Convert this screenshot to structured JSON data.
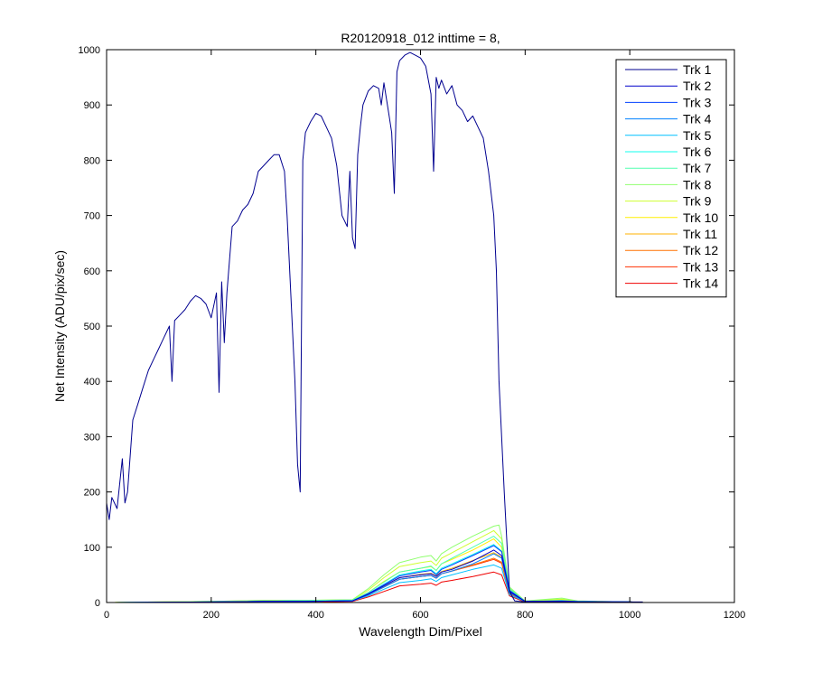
{
  "chart_data": {
    "type": "line",
    "title": "R20120918_012 inttime = 8,",
    "xlabel": "Wavelength Dim/Pixel",
    "ylabel": "Net Intensity (ADU/pix/sec)",
    "xlim": [
      0,
      1200
    ],
    "ylim": [
      0,
      1000
    ],
    "xticks": [
      0,
      200,
      400,
      600,
      800,
      1000,
      1200
    ],
    "yticks": [
      0,
      100,
      200,
      300,
      400,
      500,
      600,
      700,
      800,
      900,
      1000
    ],
    "xtick_labels": [
      "0",
      "200",
      "400",
      "600",
      "800",
      "1000",
      "1200"
    ],
    "ytick_labels": [
      "0",
      "100",
      "200",
      "300",
      "400",
      "500",
      "600",
      "700",
      "800",
      "900",
      "1000"
    ],
    "grid": false,
    "legend_position": "top-right",
    "series": [
      {
        "name": "Trk 1",
        "color": "#00008f",
        "x": [
          0,
          5,
          10,
          20,
          30,
          35,
          40,
          50,
          60,
          70,
          80,
          90,
          100,
          110,
          120,
          125,
          130,
          140,
          150,
          160,
          170,
          180,
          190,
          200,
          210,
          215,
          220,
          225,
          230,
          235,
          240,
          250,
          260,
          270,
          280,
          290,
          300,
          310,
          320,
          330,
          340,
          345,
          350,
          355,
          360,
          365,
          370,
          375,
          380,
          385,
          390,
          400,
          410,
          420,
          430,
          440,
          450,
          460,
          465,
          470,
          475,
          480,
          485,
          490,
          500,
          510,
          520,
          525,
          530,
          540,
          545,
          550,
          555,
          560,
          570,
          580,
          590,
          600,
          610,
          620,
          625,
          630,
          635,
          640,
          650,
          660,
          670,
          680,
          690,
          700,
          710,
          720,
          730,
          740,
          745,
          750,
          760,
          770,
          780,
          790,
          800,
          850,
          900,
          1000,
          1025
        ],
        "y": [
          180,
          150,
          190,
          170,
          260,
          180,
          200,
          330,
          360,
          390,
          420,
          440,
          460,
          480,
          500,
          400,
          510,
          520,
          530,
          545,
          555,
          550,
          540,
          515,
          560,
          380,
          580,
          470,
          560,
          620,
          680,
          690,
          710,
          720,
          740,
          780,
          790,
          800,
          810,
          810,
          780,
          700,
          600,
          500,
          400,
          250,
          200,
          800,
          850,
          860,
          870,
          885,
          880,
          860,
          840,
          790,
          700,
          680,
          780,
          660,
          640,
          810,
          860,
          900,
          925,
          935,
          930,
          900,
          940,
          880,
          850,
          740,
          960,
          980,
          990,
          995,
          990,
          985,
          970,
          920,
          780,
          950,
          930,
          945,
          920,
          935,
          900,
          890,
          870,
          880,
          860,
          840,
          780,
          700,
          600,
          400,
          200,
          20,
          3,
          2,
          1,
          1,
          1,
          1,
          1
        ]
      },
      {
        "name": "Trk 2",
        "color": "#0000cc",
        "x": [
          0,
          200,
          300,
          350,
          380,
          470,
          500,
          530,
          560,
          600,
          620,
          630,
          640,
          660,
          700,
          740,
          755,
          770,
          800,
          870,
          900,
          1000,
          1025
        ],
        "y": [
          0,
          1,
          2,
          2,
          2,
          3,
          15,
          30,
          45,
          50,
          52,
          47,
          55,
          60,
          75,
          95,
          85,
          20,
          2,
          2,
          1,
          1,
          0
        ]
      },
      {
        "name": "Trk 3",
        "color": "#0040ff",
        "x": [
          0,
          200,
          300,
          350,
          380,
          470,
          500,
          530,
          560,
          600,
          620,
          630,
          640,
          660,
          700,
          740,
          755,
          770,
          800,
          870,
          900,
          1000,
          1025
        ],
        "y": [
          0,
          1,
          2,
          2,
          2,
          3,
          16,
          32,
          48,
          55,
          58,
          50,
          60,
          68,
          85,
          103,
          92,
          22,
          2,
          3,
          2,
          1,
          0
        ]
      },
      {
        "name": "Trk 4",
        "color": "#0080ff",
        "x": [
          0,
          200,
          300,
          350,
          380,
          470,
          500,
          530,
          560,
          600,
          620,
          630,
          640,
          660,
          700,
          740,
          755,
          770,
          800,
          870,
          900,
          1000,
          1025
        ],
        "y": [
          0,
          1,
          2,
          2,
          2,
          3,
          14,
          28,
          42,
          47,
          49,
          44,
          52,
          57,
          70,
          88,
          80,
          18,
          2,
          2,
          1,
          1,
          0
        ]
      },
      {
        "name": "Trk 5",
        "color": "#00c0ff",
        "x": [
          0,
          200,
          300,
          350,
          380,
          470,
          500,
          530,
          560,
          600,
          620,
          630,
          640,
          660,
          700,
          740,
          755,
          770,
          800,
          870,
          900,
          1000,
          1025
        ],
        "y": [
          0,
          1,
          2,
          2,
          2,
          3,
          12,
          24,
          36,
          40,
          43,
          38,
          45,
          50,
          60,
          68,
          62,
          14,
          2,
          2,
          1,
          1,
          0
        ]
      },
      {
        "name": "Trk 6",
        "color": "#10ffef",
        "x": [
          0,
          200,
          300,
          350,
          380,
          470,
          500,
          530,
          560,
          600,
          620,
          630,
          640,
          660,
          700,
          740,
          755,
          770,
          800,
          870,
          900,
          1000,
          1025
        ],
        "y": [
          0,
          1,
          2,
          3,
          3,
          4,
          16,
          33,
          50,
          57,
          60,
          52,
          62,
          70,
          87,
          105,
          93,
          22,
          2,
          3,
          2,
          1,
          0
        ]
      },
      {
        "name": "Trk 7",
        "color": "#50ffaf",
        "x": [
          0,
          200,
          300,
          350,
          380,
          470,
          500,
          530,
          560,
          600,
          620,
          630,
          640,
          660,
          700,
          740,
          755,
          770,
          800,
          870,
          900,
          1000,
          1025
        ],
        "y": [
          0,
          1,
          2,
          3,
          3,
          4,
          18,
          37,
          55,
          62,
          66,
          58,
          70,
          80,
          100,
          120,
          107,
          25,
          2,
          4,
          2,
          1,
          0
        ]
      },
      {
        "name": "Trk 8",
        "color": "#90ff6f",
        "x": [
          0,
          200,
          300,
          350,
          380,
          470,
          500,
          530,
          560,
          600,
          620,
          630,
          640,
          660,
          700,
          740,
          750,
          755,
          770,
          800,
          870,
          900,
          1000,
          1025
        ],
        "y": [
          0,
          2,
          4,
          4,
          4,
          5,
          25,
          50,
          72,
          82,
          85,
          75,
          88,
          100,
          120,
          138,
          140,
          120,
          28,
          3,
          8,
          3,
          1,
          0
        ]
      },
      {
        "name": "Trk 9",
        "color": "#cfff30",
        "x": [
          0,
          200,
          300,
          350,
          380,
          470,
          500,
          530,
          560,
          600,
          620,
          630,
          640,
          660,
          700,
          740,
          755,
          770,
          800,
          870,
          900,
          1000,
          1025
        ],
        "y": [
          0,
          2,
          4,
          4,
          4,
          5,
          22,
          45,
          65,
          72,
          75,
          67,
          80,
          90,
          110,
          130,
          115,
          26,
          3,
          6,
          3,
          1,
          0
        ]
      },
      {
        "name": "Trk 10",
        "color": "#ffef00",
        "x": [
          0,
          200,
          300,
          350,
          380,
          470,
          500,
          530,
          560,
          600,
          620,
          630,
          640,
          660,
          700,
          740,
          755,
          770,
          800,
          870,
          900,
          1000,
          1025
        ],
        "y": [
          0,
          2,
          3,
          3,
          3,
          4,
          18,
          38,
          55,
          62,
          65,
          58,
          70,
          78,
          95,
          115,
          100,
          23,
          2,
          5,
          2,
          1,
          0
        ]
      },
      {
        "name": "Trk 11",
        "color": "#ffb000",
        "x": [
          0,
          200,
          300,
          350,
          380,
          470,
          500,
          530,
          560,
          600,
          620,
          630,
          640,
          660,
          700,
          740,
          755,
          770,
          800,
          870,
          900,
          1000,
          1025
        ],
        "y": [
          0,
          1,
          2,
          2,
          2,
          3,
          15,
          30,
          45,
          51,
          53,
          48,
          56,
          62,
          76,
          90,
          82,
          19,
          2,
          4,
          2,
          1,
          0
        ]
      },
      {
        "name": "Trk 12",
        "color": "#ff7000",
        "x": [
          0,
          200,
          300,
          350,
          380,
          470,
          500,
          530,
          560,
          600,
          620,
          630,
          640,
          660,
          700,
          740,
          755,
          770,
          800,
          870,
          900,
          1000,
          1025
        ],
        "y": [
          0,
          1,
          2,
          2,
          2,
          3,
          14,
          28,
          42,
          47,
          49,
          44,
          52,
          57,
          68,
          80,
          73,
          17,
          2,
          4,
          2,
          1,
          0
        ]
      },
      {
        "name": "Trk 13",
        "color": "#ff3000",
        "x": [
          0,
          200,
          300,
          350,
          380,
          470,
          500,
          530,
          560,
          600,
          620,
          630,
          640,
          660,
          700,
          740,
          755,
          770,
          800,
          870,
          900,
          1000,
          1025
        ],
        "y": [
          0,
          1,
          2,
          2,
          2,
          3,
          14,
          28,
          42,
          47,
          49,
          44,
          52,
          57,
          67,
          78,
          71,
          16,
          2,
          3,
          2,
          1,
          0
        ]
      },
      {
        "name": "Trk 14",
        "color": "#ef0000",
        "x": [
          0,
          200,
          300,
          350,
          380,
          470,
          500,
          530,
          560,
          600,
          620,
          630,
          640,
          660,
          700,
          740,
          755,
          770,
          800,
          870,
          900,
          1000,
          1025
        ],
        "y": [
          0,
          1,
          1,
          1,
          1,
          2,
          10,
          20,
          30,
          33,
          35,
          31,
          37,
          40,
          47,
          55,
          50,
          12,
          1,
          2,
          1,
          1,
          0
        ]
      }
    ]
  }
}
